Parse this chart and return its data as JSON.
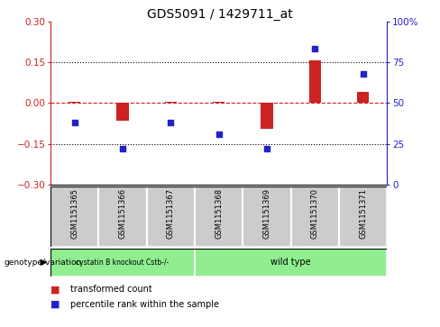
{
  "title": "GDS5091 / 1429711_at",
  "samples": [
    "GSM1151365",
    "GSM1151366",
    "GSM1151367",
    "GSM1151368",
    "GSM1151369",
    "GSM1151370",
    "GSM1151371"
  ],
  "x_positions": [
    0,
    1,
    2,
    3,
    4,
    5,
    6
  ],
  "transformed_counts": [
    0.005,
    -0.065,
    0.003,
    0.004,
    -0.095,
    0.155,
    0.04
  ],
  "percentile_ranks": [
    38,
    22,
    38,
    31,
    22,
    83,
    68
  ],
  "ylim_left": [
    -0.3,
    0.3
  ],
  "ylim_right": [
    0,
    100
  ],
  "yticks_left": [
    -0.3,
    -0.15,
    0.0,
    0.15,
    0.3
  ],
  "yticks_right": [
    0,
    25,
    50,
    75,
    100
  ],
  "group1_label": "cystatin B knockout Cstb-/-",
  "group2_label": "wild type",
  "group1_color": "#90ee90",
  "group2_color": "#90ee90",
  "bar_color": "#cc2222",
  "dot_color": "#2222cc",
  "zero_line_color": "#cc2222",
  "dotted_line_color": "#000000",
  "bg_color": "#ffffff",
  "sample_box_color": "#cccccc",
  "legend_bar_label": "transformed count",
  "legend_dot_label": "percentile rank within the sample",
  "genotype_label": "genotype/variation",
  "bar_width": 0.25
}
